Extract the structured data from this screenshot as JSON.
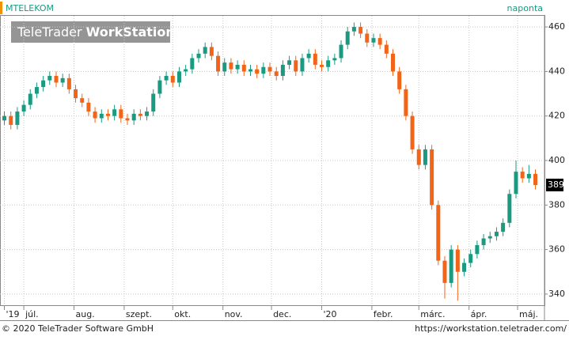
{
  "chart_data": {
    "type": "candlestick",
    "title": "MTELEKOM",
    "interval": "naponta",
    "watermark": [
      "TeleTrader",
      "WorkStation"
    ],
    "copyright": "© 2020 TeleTrader Software GmbH",
    "url": "https://workstation.teletrader.com/",
    "up_color": "#1a9a80",
    "down_color": "#f26418",
    "grid": true,
    "ylim": [
      335,
      465
    ],
    "yticks": [
      340,
      360,
      380,
      400,
      420,
      440,
      460
    ],
    "xlim": [
      -14.7,
      321.6
    ],
    "xticks": [
      {
        "value": -12,
        "label": "'19"
      },
      {
        "value": 0,
        "label": "júl."
      },
      {
        "value": 31,
        "label": "aug."
      },
      {
        "value": 62,
        "label": "szept."
      },
      {
        "value": 92,
        "label": "okt."
      },
      {
        "value": 123,
        "label": "nov."
      },
      {
        "value": 153,
        "label": "dec."
      },
      {
        "value": 184,
        "label": "'20"
      },
      {
        "value": 215,
        "label": "febr."
      },
      {
        "value": 244,
        "label": "márc."
      },
      {
        "value": 275,
        "label": "ápr."
      },
      {
        "value": 305,
        "label": "máj."
      }
    ],
    "last_value": 389,
    "x": [
      -12,
      -8,
      -4,
      0,
      4,
      8,
      12,
      16,
      20,
      24,
      28,
      32,
      36,
      40,
      44,
      48,
      52,
      56,
      60,
      64,
      68,
      72,
      76,
      80,
      84,
      88,
      92,
      96,
      100,
      104,
      108,
      112,
      116,
      120,
      124,
      128,
      132,
      136,
      140,
      144,
      148,
      152,
      156,
      160,
      164,
      168,
      172,
      176,
      180,
      184,
      188,
      192,
      196,
      200,
      204,
      208,
      212,
      216,
      220,
      224,
      228,
      232,
      236,
      240,
      244,
      248,
      252,
      256,
      260,
      264,
      268,
      272,
      276,
      280,
      284,
      288,
      292,
      296,
      300,
      304,
      308,
      312,
      316
    ],
    "ohlc": [
      [
        418,
        422,
        416,
        420
      ],
      [
        420,
        422,
        414,
        416
      ],
      [
        416,
        424,
        414,
        422
      ],
      [
        422,
        427,
        420,
        425
      ],
      [
        425,
        432,
        423,
        430
      ],
      [
        430,
        435,
        428,
        433
      ],
      [
        433,
        438,
        431,
        436
      ],
      [
        436,
        440,
        434,
        438
      ],
      [
        438,
        440,
        433,
        435
      ],
      [
        435,
        439,
        433,
        437
      ],
      [
        437,
        439,
        430,
        432
      ],
      [
        432,
        434,
        426,
        428
      ],
      [
        428,
        430,
        424,
        426
      ],
      [
        426,
        428,
        420,
        422
      ],
      [
        422,
        424,
        417,
        419
      ],
      [
        419,
        423,
        417,
        421
      ],
      [
        421,
        423,
        418,
        420
      ],
      [
        420,
        425,
        418,
        423
      ],
      [
        423,
        425,
        417,
        419
      ],
      [
        419,
        421,
        416,
        418
      ],
      [
        418,
        423,
        416,
        421
      ],
      [
        421,
        423,
        418,
        420
      ],
      [
        420,
        424,
        418,
        422
      ],
      [
        422,
        432,
        420,
        430
      ],
      [
        430,
        438,
        428,
        436
      ],
      [
        436,
        440,
        434,
        438
      ],
      [
        438,
        440,
        433,
        435
      ],
      [
        435,
        442,
        433,
        440
      ],
      [
        440,
        443,
        438,
        441
      ],
      [
        441,
        448,
        439,
        446
      ],
      [
        446,
        450,
        444,
        448
      ],
      [
        448,
        453,
        446,
        451
      ],
      [
        451,
        453,
        445,
        447
      ],
      [
        447,
        449,
        438,
        440
      ],
      [
        440,
        446,
        438,
        444
      ],
      [
        444,
        446,
        439,
        441
      ],
      [
        441,
        445,
        439,
        443
      ],
      [
        443,
        445,
        438,
        440
      ],
      [
        440,
        443,
        438,
        441
      ],
      [
        441,
        443,
        437,
        439
      ],
      [
        439,
        444,
        437,
        442
      ],
      [
        442,
        444,
        438,
        440
      ],
      [
        440,
        442,
        436,
        438
      ],
      [
        438,
        445,
        436,
        443
      ],
      [
        443,
        447,
        441,
        445
      ],
      [
        445,
        447,
        438,
        440
      ],
      [
        440,
        448,
        438,
        446
      ],
      [
        446,
        450,
        444,
        448
      ],
      [
        448,
        450,
        441,
        443
      ],
      [
        443,
        445,
        440,
        442
      ],
      [
        442,
        447,
        440,
        445
      ],
      [
        445,
        448,
        443,
        446
      ],
      [
        446,
        454,
        444,
        452
      ],
      [
        452,
        460,
        450,
        458
      ],
      [
        458,
        462,
        456,
        460
      ],
      [
        460,
        462,
        455,
        457
      ],
      [
        457,
        459,
        451,
        453
      ],
      [
        453,
        457,
        451,
        455
      ],
      [
        455,
        457,
        450,
        452
      ],
      [
        452,
        454,
        446,
        448
      ],
      [
        448,
        450,
        438,
        440
      ],
      [
        440,
        442,
        430,
        432
      ],
      [
        432,
        434,
        418,
        420
      ],
      [
        420,
        422,
        403,
        405
      ],
      [
        405,
        407,
        396,
        398
      ],
      [
        398,
        407,
        396,
        405
      ],
      [
        405,
        407,
        378,
        380
      ],
      [
        380,
        382,
        353,
        355
      ],
      [
        355,
        357,
        338,
        345
      ],
      [
        345,
        362,
        343,
        360
      ],
      [
        360,
        362,
        337,
        350
      ],
      [
        350,
        356,
        348,
        354
      ],
      [
        354,
        360,
        352,
        358
      ],
      [
        358,
        364,
        356,
        362
      ],
      [
        362,
        367,
        360,
        365
      ],
      [
        365,
        368,
        363,
        366
      ],
      [
        366,
        370,
        364,
        368
      ],
      [
        368,
        374,
        366,
        372
      ],
      [
        372,
        387,
        370,
        385
      ],
      [
        385,
        400,
        383,
        395
      ],
      [
        395,
        397,
        390,
        392
      ],
      [
        392,
        398,
        390,
        394
      ],
      [
        394,
        396,
        387,
        389
      ]
    ]
  }
}
